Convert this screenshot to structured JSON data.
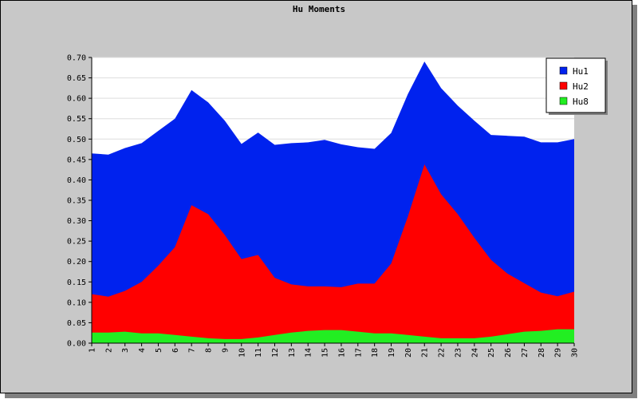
{
  "chart_data": {
    "type": "area",
    "title": "Hu Moments",
    "xlabel": "",
    "ylabel": "",
    "x": [
      1,
      2,
      3,
      4,
      5,
      6,
      7,
      8,
      9,
      10,
      11,
      12,
      13,
      14,
      15,
      16,
      17,
      18,
      19,
      20,
      21,
      22,
      23,
      24,
      25,
      26,
      27,
      28,
      29,
      30
    ],
    "ylim": [
      0,
      0.7
    ],
    "yticks": [
      "0.00",
      "0.05",
      "0.10",
      "0.15",
      "0.20",
      "0.25",
      "0.30",
      "0.35",
      "0.40",
      "0.45",
      "0.50",
      "0.55",
      "0.60",
      "0.65",
      "0.70"
    ],
    "grid": true,
    "legend_position": "top-right",
    "series": [
      {
        "name": "Hu1",
        "color": "#0022ee",
        "values": [
          0.465,
          0.462,
          0.478,
          0.49,
          0.52,
          0.55,
          0.62,
          0.59,
          0.545,
          0.488,
          0.516,
          0.486,
          0.49,
          0.492,
          0.498,
          0.487,
          0.48,
          0.476,
          0.515,
          0.61,
          0.69,
          0.625,
          0.582,
          0.545,
          0.51,
          0.508,
          0.506,
          0.492,
          0.492,
          0.5
        ]
      },
      {
        "name": "Hu2",
        "color": "#ff0000",
        "values": [
          0.12,
          0.114,
          0.128,
          0.15,
          0.19,
          0.235,
          0.338,
          0.316,
          0.265,
          0.206,
          0.216,
          0.16,
          0.144,
          0.139,
          0.139,
          0.137,
          0.146,
          0.146,
          0.195,
          0.31,
          0.438,
          0.365,
          0.316,
          0.258,
          0.204,
          0.17,
          0.147,
          0.124,
          0.115,
          0.126
        ]
      },
      {
        "name": "Hu8",
        "color": "#22ee22",
        "values": [
          0.026,
          0.026,
          0.028,
          0.024,
          0.024,
          0.02,
          0.016,
          0.012,
          0.01,
          0.01,
          0.014,
          0.02,
          0.026,
          0.03,
          0.032,
          0.032,
          0.028,
          0.024,
          0.024,
          0.02,
          0.016,
          0.012,
          0.012,
          0.012,
          0.016,
          0.022,
          0.028,
          0.03,
          0.034,
          0.034
        ]
      }
    ]
  }
}
